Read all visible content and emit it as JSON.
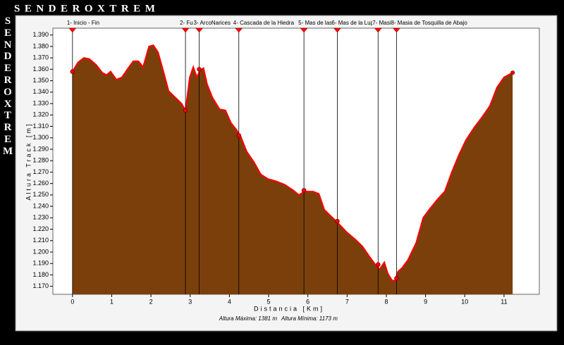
{
  "chart_data": {
    "type": "area",
    "title": "SENDEROXTREM",
    "side_title": "SENDEROXTREM",
    "x_label": "Distancia [Km]",
    "y_label": "Altura Track [m]",
    "footer_max": "Altura Máxima: 1381 m",
    "footer_min": "Altura Mínima: 1173 m",
    "x": [
      0,
      0.14,
      0.29,
      0.43,
      0.6,
      0.76,
      0.87,
      0.97,
      1.12,
      1.26,
      1.44,
      1.55,
      1.68,
      1.8,
      1.95,
      2.06,
      2.18,
      2.31,
      2.45,
      2.63,
      2.78,
      2.88,
      2.99,
      3.08,
      3.17,
      3.25,
      3.34,
      3.43,
      3.57,
      3.75,
      3.9,
      4.04,
      4.18,
      4.29,
      4.44,
      4.62,
      4.8,
      4.98,
      5.19,
      5.41,
      5.63,
      5.77,
      5.92,
      6.13,
      6.28,
      6.42,
      6.6,
      6.78,
      7.0,
      7.21,
      7.39,
      7.57,
      7.72,
      7.83,
      7.95,
      8.04,
      8.15,
      8.22,
      8.3,
      8.4,
      8.55,
      8.76,
      8.94,
      9.09,
      9.3,
      9.49,
      9.67,
      9.85,
      10.03,
      10.24,
      10.46,
      10.64,
      10.82,
      11.0,
      11.22
    ],
    "series": [
      {
        "color": "#7b3f0b",
        "line_color": "#ff0000",
        "values": [
          1358,
          1366,
          1370,
          1369,
          1364,
          1357,
          1355,
          1358,
          1351,
          1353,
          1362,
          1367,
          1367,
          1362,
          1380,
          1381,
          1375,
          1359,
          1341,
          1335,
          1330,
          1324,
          1353,
          1362,
          1353,
          1359,
          1361,
          1347,
          1335,
          1325,
          1324,
          1313,
          1307,
          1301,
          1288,
          1279,
          1268,
          1264,
          1262,
          1259,
          1254,
          1250,
          1253,
          1253,
          1251,
          1237,
          1231,
          1225,
          1217,
          1211,
          1205,
          1196,
          1189,
          1185,
          1191,
          1181,
          1175,
          1175,
          1183,
          1186,
          1193,
          1208,
          1230,
          1237,
          1246,
          1253,
          1270,
          1285,
          1298,
          1309,
          1319,
          1328,
          1344,
          1353,
          1357
        ]
      }
    ],
    "xlim": [
      -0.5,
      11.9
    ],
    "ylim": [
      1163,
      1396
    ],
    "xticks": [
      0,
      1,
      2,
      3,
      4,
      5,
      6,
      7,
      8,
      9,
      10,
      11
    ],
    "yticks": [
      {
        "value": 1170,
        "label": "1.170"
      },
      {
        "value": 1180,
        "label": "1.180"
      },
      {
        "value": 1190,
        "label": "1.190"
      },
      {
        "value": 1200,
        "label": "1.200"
      },
      {
        "value": 1210,
        "label": "1.210"
      },
      {
        "value": 1220,
        "label": "1.220"
      },
      {
        "value": 1230,
        "label": "1.230"
      },
      {
        "value": 1240,
        "label": "1.240"
      },
      {
        "value": 1250,
        "label": "1.250"
      },
      {
        "value": 1260,
        "label": "1.260"
      },
      {
        "value": 1270,
        "label": "1.270"
      },
      {
        "value": 1280,
        "label": "1.280"
      },
      {
        "value": 1290,
        "label": "1.290"
      },
      {
        "value": 1300,
        "label": "1.300"
      },
      {
        "value": 1310,
        "label": "1.310"
      },
      {
        "value": 1320,
        "label": "1.320"
      },
      {
        "value": 1330,
        "label": "1.330"
      },
      {
        "value": 1340,
        "label": "1.340"
      },
      {
        "value": 1350,
        "label": "1.350"
      },
      {
        "value": 1360,
        "label": "1.360"
      },
      {
        "value": 1370,
        "label": "1.370"
      },
      {
        "value": 1380,
        "label": "1.380"
      },
      {
        "value": 1390,
        "label": "1.390"
      }
    ],
    "grid": false,
    "waypoint_color": "#ff0000",
    "waypoints": [
      {
        "label": "1- Inicio - Fin",
        "km": 0,
        "elevation": 1358
      },
      {
        "label": "2- Fu",
        "km": 2.88,
        "elevation": 1324
      },
      {
        "label": "3- ArcoNarices",
        "km": 3.23,
        "elevation": 1360
      },
      {
        "label": "4- Cascada de la Hiedra",
        "km": 4.24,
        "elevation": 1302
      },
      {
        "label": "5- Mas de las",
        "km": 5.9,
        "elevation": 1254
      },
      {
        "label": "6- Mas de la Lup",
        "km": 6.75,
        "elevation": 1227
      },
      {
        "label": "7- Masi",
        "km": 7.79,
        "elevation": 1189
      },
      {
        "label": "8- Masia de Tosquilla de Abajo",
        "km": 8.26,
        "elevation": 1177
      }
    ]
  }
}
